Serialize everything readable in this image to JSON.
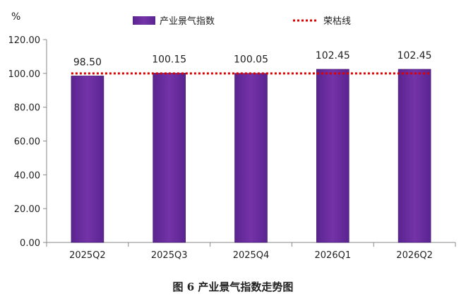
{
  "chart_data": {
    "type": "bar",
    "unit_label": "%",
    "categories": [
      "2025Q2",
      "2025Q3",
      "2025Q4",
      "2026Q1",
      "2026Q2"
    ],
    "series": [
      {
        "name": "产业景气指数",
        "type": "bar",
        "values": [
          98.5,
          100.15,
          100.05,
          102.45,
          102.45
        ],
        "color": "#6a2c9e"
      },
      {
        "name": "荣枯线",
        "type": "line",
        "style": "dotted",
        "values": [
          100,
          100,
          100,
          100,
          100
        ],
        "color": "#e00000"
      }
    ],
    "data_labels": [
      "98.50",
      "100.15",
      "100.05",
      "102.45",
      "102.45"
    ],
    "ylim": [
      0,
      120
    ],
    "yticks": [
      "0.00",
      "20.00",
      "40.00",
      "60.00",
      "80.00",
      "100.00",
      "120.00"
    ],
    "grid": false,
    "legend_position": "top"
  },
  "caption": "图 6  产业景气指数走势图"
}
